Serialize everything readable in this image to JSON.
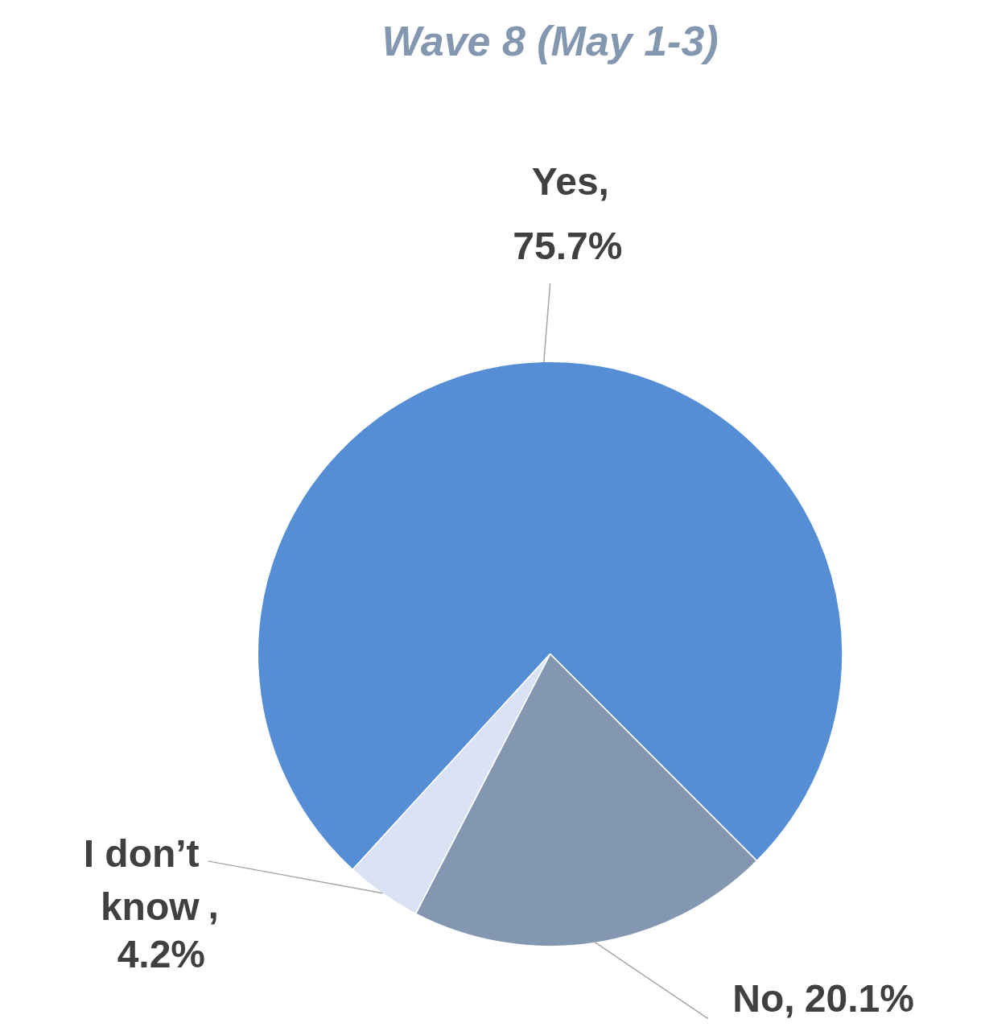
{
  "chart_data": {
    "type": "pie",
    "title": "Wave 8 (May 1-3)",
    "categories": [
      "Yes",
      "No",
      "I don’t know"
    ],
    "values": [
      75.7,
      20.1,
      4.2
    ],
    "colors": [
      "#558ed5",
      "#8497b0",
      "#dae3f3"
    ],
    "value_labels": [
      "75.7%",
      "20.1%",
      "4.2%"
    ],
    "annotations": [
      ",",
      ",",
      ","
    ]
  }
}
